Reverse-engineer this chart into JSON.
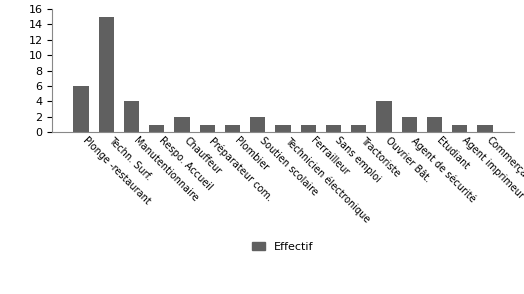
{
  "categories": [
    "Plonge -restaurant",
    "Techn. Surf.",
    "Manutentionnaire",
    "Respo. Accueil",
    "Chauffeur",
    "Préparateur com.",
    "Plombier",
    "Soutien scolaire",
    "Technicien électronique",
    "Ferrailleur",
    "Sans emploi",
    "Tractoriste",
    "Ouvrier Bât.",
    "Agent de sécurité",
    "Etudiant",
    "Agent imprimeur",
    "Commerçant"
  ],
  "values": [
    6,
    15,
    4,
    1,
    2,
    1,
    1,
    2,
    1,
    1,
    1,
    1,
    4,
    2,
    2,
    1,
    1
  ],
  "bar_color": "#606060",
  "legend_label": "Effectif",
  "ylim": [
    0,
    16
  ],
  "yticks": [
    0,
    2,
    4,
    6,
    8,
    10,
    12,
    14,
    16
  ],
  "background_color": "#ffffff",
  "label_fontsize": 7,
  "ytick_fontsize": 8
}
